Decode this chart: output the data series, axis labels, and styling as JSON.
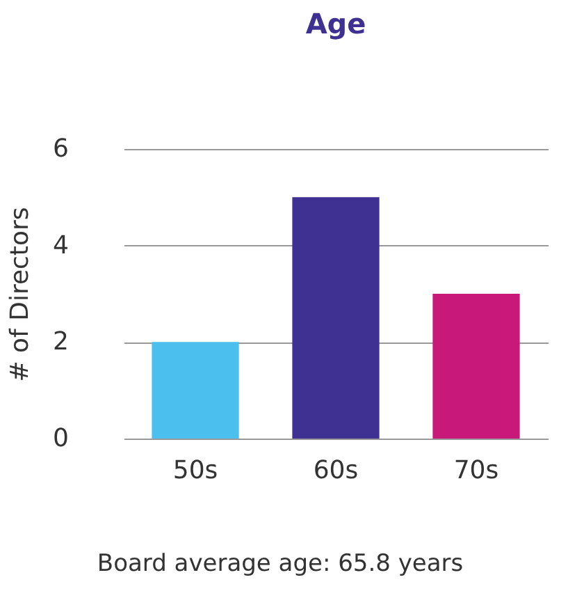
{
  "chart_data": {
    "type": "bar",
    "title": "Age",
    "ylabel": "# of Directors",
    "categories": [
      "50s",
      "60s",
      "70s"
    ],
    "values": [
      2,
      5,
      3
    ],
    "colors": [
      "#4bbfee",
      "#3e3192",
      "#c8197a"
    ],
    "ylim": [
      0,
      6
    ],
    "yticks": [
      0,
      2,
      4,
      6
    ],
    "grid": "y",
    "annotations": [
      "Board average age: 65.8 years"
    ]
  }
}
